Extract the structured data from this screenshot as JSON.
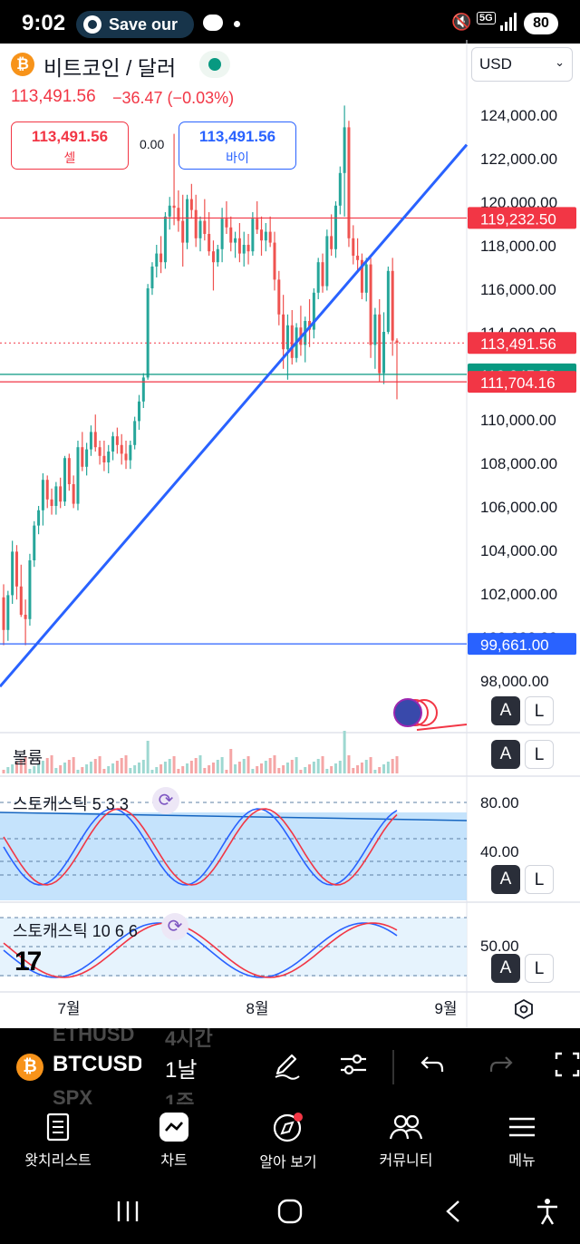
{
  "status_bar": {
    "time": "9:02",
    "notification": "Save our",
    "network": "5G",
    "battery": "80"
  },
  "header": {
    "coin_glyph": "₿",
    "title": "비트코인 / 달러",
    "last_price": "113,491.56",
    "change": "−36.47 (−0.03%)",
    "sell_price": "113,491.56",
    "sell_label": "셀",
    "buy_price": "113,491.56",
    "buy_label": "바이",
    "spread": "0.00",
    "currency": "USD"
  },
  "chart_data": {
    "type": "candlestick",
    "symbol": "BTCUSD",
    "interval": "1D",
    "y_axis_ticks": [
      "124,000.00",
      "122,000.00",
      "120,000.00",
      "118,000.00",
      "116,000.00",
      "114,000.00",
      "112,000.00",
      "110,000.00",
      "108,000.00",
      "106,000.00",
      "104,000.00",
      "102,000.00",
      "100,000.00",
      "98,000.00"
    ],
    "ylim": [
      97000,
      125500
    ],
    "x_axis_labels": [
      "7월",
      "8월",
      "9월"
    ],
    "price_markers": [
      {
        "value": "119,232.50",
        "kind": "horizontal-line",
        "color": "#f23645"
      },
      {
        "value": "113,491.56",
        "kind": "last-price",
        "color": "#f23645"
      },
      {
        "value": "112,045.73",
        "kind": "horizontal-line",
        "color": "#089981"
      },
      {
        "value": "111,704.16",
        "kind": "horizontal-line",
        "color": "#f23645"
      },
      {
        "value": "99,661.00",
        "kind": "horizontal-line",
        "color": "#2962ff"
      }
    ],
    "trendline": {
      "color": "#2962ff",
      "from_value": 97700,
      "to_value": 122600
    },
    "candles": [
      [
        101800,
        102400,
        99600,
        100300
      ],
      [
        100300,
        102100,
        99800,
        101900
      ],
      [
        101900,
        104400,
        101500,
        103900
      ],
      [
        103900,
        104200,
        101700,
        102300
      ],
      [
        102300,
        103300,
        100900,
        101000
      ],
      [
        101000,
        101700,
        99600,
        100800
      ],
      [
        100800,
        103800,
        100500,
        103500
      ],
      [
        103500,
        105300,
        103200,
        105100
      ],
      [
        105100,
        106000,
        104700,
        105800
      ],
      [
        105800,
        107500,
        105100,
        107200
      ],
      [
        107200,
        107400,
        105900,
        106300
      ],
      [
        106300,
        106800,
        105600,
        106000
      ],
      [
        106000,
        107100,
        105600,
        106900
      ],
      [
        106900,
        107300,
        105900,
        106200
      ],
      [
        106200,
        108300,
        106000,
        108200
      ],
      [
        108200,
        108400,
        106700,
        107000
      ],
      [
        107000,
        107400,
        105900,
        106100
      ],
      [
        106100,
        109000,
        105800,
        108700
      ],
      [
        108700,
        109400,
        107600,
        107800
      ],
      [
        107800,
        108900,
        107400,
        108600
      ],
      [
        108600,
        109700,
        108300,
        109400
      ],
      [
        109400,
        110200,
        108500,
        108700
      ],
      [
        108700,
        109000,
        107900,
        108300
      ],
      [
        108300,
        109000,
        107600,
        108000
      ],
      [
        108000,
        108800,
        107500,
        108500
      ],
      [
        108500,
        109400,
        108100,
        109200
      ],
      [
        109200,
        109600,
        108400,
        108800
      ],
      [
        108800,
        109300,
        107900,
        108400
      ],
      [
        108400,
        109000,
        107700,
        108100
      ],
      [
        108100,
        109000,
        107700,
        108800
      ],
      [
        108800,
        110100,
        108600,
        109900
      ],
      [
        109900,
        111100,
        109500,
        110800
      ],
      [
        110800,
        112100,
        110500,
        111900
      ],
      [
        111900,
        116200,
        111800,
        116000
      ],
      [
        116000,
        117200,
        115700,
        117000
      ],
      [
        117000,
        118000,
        116500,
        117600
      ],
      [
        117600,
        118400,
        116700,
        117200
      ],
      [
        117200,
        119500,
        116900,
        119300
      ],
      [
        119300,
        120200,
        118700,
        119800
      ],
      [
        119800,
        123100,
        118900,
        119700
      ],
      [
        119700,
        120500,
        118600,
        119100
      ],
      [
        119100,
        120300,
        117000,
        118100
      ],
      [
        118100,
        120300,
        117800,
        120100
      ],
      [
        120100,
        120800,
        119200,
        119600
      ],
      [
        119600,
        120300,
        117900,
        118300
      ],
      [
        118300,
        119300,
        117700,
        119100
      ],
      [
        119100,
        120100,
        118200,
        118500
      ],
      [
        118500,
        119500,
        117500,
        117700
      ],
      [
        117700,
        118200,
        115900,
        117200
      ],
      [
        117200,
        118000,
        117000,
        117800
      ],
      [
        117800,
        119700,
        117200,
        119200
      ],
      [
        119200,
        120000,
        118500,
        118800
      ],
      [
        118800,
        119300,
        117700,
        118100
      ],
      [
        118100,
        118600,
        117400,
        118300
      ],
      [
        118300,
        119000,
        117200,
        117600
      ],
      [
        117600,
        118600,
        117000,
        118000
      ],
      [
        118000,
        118500,
        117100,
        117700
      ],
      [
        117700,
        119500,
        117500,
        119200
      ],
      [
        119200,
        120000,
        118500,
        118700
      ],
      [
        118700,
        119300,
        117500,
        118200
      ],
      [
        118200,
        119000,
        117700,
        118600
      ],
      [
        118600,
        119300,
        117900,
        118100
      ],
      [
        118100,
        118600,
        115900,
        116400
      ],
      [
        116400,
        116800,
        114300,
        114800
      ],
      [
        114800,
        115700,
        112300,
        113200
      ],
      [
        113200,
        114800,
        111800,
        114300
      ],
      [
        114300,
        115000,
        112500,
        112800
      ],
      [
        112800,
        114400,
        112600,
        114200
      ],
      [
        114200,
        115200,
        112900,
        113400
      ],
      [
        113400,
        114700,
        112600,
        114500
      ],
      [
        114500,
        115500,
        113300,
        114100
      ],
      [
        114100,
        116000,
        113700,
        115800
      ],
      [
        115800,
        117400,
        115500,
        117200
      ],
      [
        117200,
        117600,
        115800,
        116100
      ],
      [
        116100,
        118700,
        115900,
        118400
      ],
      [
        118400,
        119400,
        117500,
        117800
      ],
      [
        117800,
        120000,
        117400,
        119800
      ],
      [
        119800,
        121600,
        119400,
        121300
      ],
      [
        121300,
        124400,
        119300,
        123400
      ],
      [
        123400,
        123700,
        117900,
        118300
      ],
      [
        118300,
        118900,
        117100,
        117500
      ],
      [
        117500,
        118300,
        116800,
        117300
      ],
      [
        117300,
        117600,
        115500,
        115800
      ],
      [
        115800,
        117400,
        115400,
        117100
      ],
      [
        117100,
        117400,
        112800,
        113400
      ],
      [
        113400,
        115100,
        112300,
        114800
      ],
      [
        114800,
        115500,
        111700,
        112100
      ],
      [
        112100,
        114900,
        111600,
        114000
      ],
      [
        114000,
        117000,
        113900,
        116800
      ],
      [
        116800,
        117400,
        112900,
        113600
      ],
      [
        113600,
        113700,
        110900,
        113500
      ]
    ],
    "volume_label": "볼륨",
    "stochastic_1": {
      "label": "스토캐스틱 5 3 3",
      "ticks": [
        "80.00",
        "40.00"
      ]
    },
    "stochastic_2": {
      "label": "스토캐스틱 10 6 6",
      "ticks": [
        "50.00"
      ]
    }
  },
  "scale_buttons": {
    "auto": "A",
    "log": "L"
  },
  "toolbar": {
    "coin_glyph": "₿",
    "symbol": "BTCUSD",
    "interval": "1날",
    "ghost_symbols": [
      "ETHUSD",
      "SPX"
    ],
    "ghost_intervals": [
      "4시간",
      "1주"
    ]
  },
  "nav": {
    "items": [
      {
        "label": "왓치리스트",
        "icon": "watchlist-icon"
      },
      {
        "label": "차트",
        "icon": "chart-icon"
      },
      {
        "label": "알아 보기",
        "icon": "explore-icon"
      },
      {
        "label": "커뮤니티",
        "icon": "community-icon"
      },
      {
        "label": "메뉴",
        "icon": "menu-icon"
      }
    ]
  }
}
